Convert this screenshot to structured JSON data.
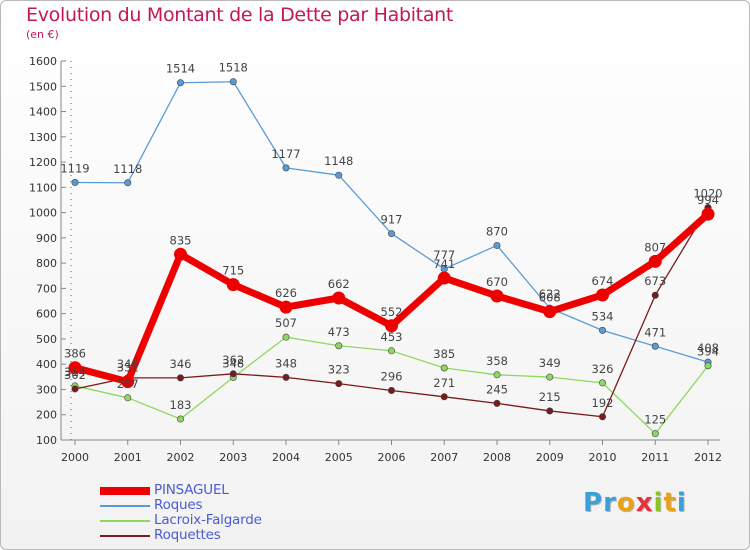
{
  "title": "Evolution du Montant de la Dette par Habitant",
  "subtitle": "(en €)",
  "logo": {
    "letters": [
      "P",
      "r",
      "o",
      "x",
      "i",
      "t",
      "i"
    ],
    "colors": [
      "#3aa0d8",
      "#3aa0d8",
      "#e8a21a",
      "#e8303a",
      "#8fc31f",
      "#e8a21a",
      "#3aa0d8"
    ]
  },
  "chart_data": {
    "type": "line",
    "title": "Evolution du Montant de la Dette par Habitant",
    "ylabel": "(en €)",
    "x": [
      "2000",
      "2001",
      "2002",
      "2003",
      "2004",
      "2005",
      "2006",
      "2007",
      "2008",
      "2009",
      "2010",
      "2011",
      "2012"
    ],
    "ylim": [
      100,
      1600
    ],
    "yticks": [
      "100",
      "200",
      "300",
      "400",
      "500",
      "600",
      "700",
      "800",
      "900",
      "1000",
      "1100",
      "1200",
      "1300",
      "1400",
      "1500",
      "1600"
    ],
    "grid": false,
    "legend_position": "bottom-left",
    "series": [
      {
        "name": "PINSAGUEL",
        "color": "#ee0000",
        "values": [
          386,
          331,
          835,
          715,
          626,
          662,
          552,
          741,
          670,
          608,
          674,
          807,
          994
        ]
      },
      {
        "name": "Roques",
        "color": "#5b9bd5",
        "values": [
          1119,
          1118,
          1514,
          1518,
          1177,
          1148,
          917,
          777,
          870,
          622,
          534,
          471,
          408
        ]
      },
      {
        "name": "Lacroix-Falgarde",
        "color": "#8ed85f",
        "values": [
          314,
          267,
          183,
          348,
          507,
          473,
          453,
          385,
          358,
          349,
          326,
          125,
          394
        ]
      },
      {
        "name": "Roquettes",
        "color": "#7a1a1a",
        "values": [
          302,
          346,
          346,
          362,
          348,
          323,
          296,
          271,
          245,
          215,
          192,
          673,
          1020
        ]
      }
    ]
  }
}
